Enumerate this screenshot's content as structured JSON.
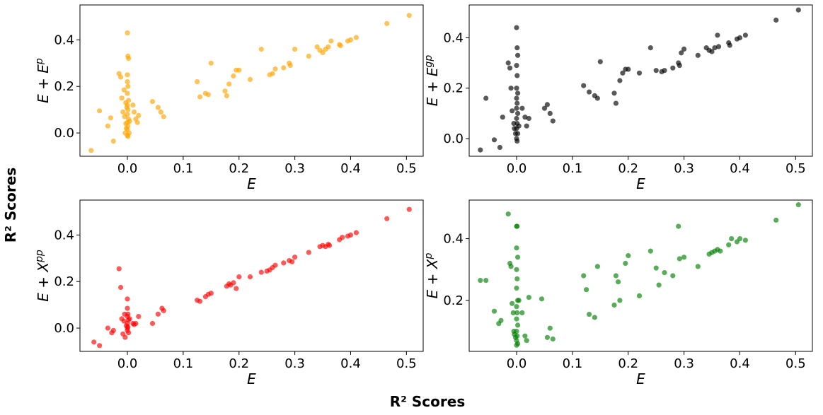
{
  "figure": {
    "shared_xlabel": "R² Scores",
    "shared_ylabel": "R² Scores"
  },
  "chart_data": [
    {
      "type": "scatter",
      "name": "panel-e-plus-ep",
      "color": "#ffa500",
      "xlabel": "E",
      "ylabel_base": "E + E",
      "ylabel_sup": "p",
      "xlim": [
        -0.085,
        0.53
      ],
      "ylim": [
        -0.1,
        0.55
      ],
      "xticks": [
        {
          "v": 0.0,
          "t": "0.0"
        },
        {
          "v": 0.1,
          "t": "0.1"
        },
        {
          "v": 0.2,
          "t": "0.2"
        },
        {
          "v": 0.3,
          "t": "0.3"
        },
        {
          "v": 0.4,
          "t": "0.4"
        },
        {
          "v": 0.5,
          "t": "0.5"
        }
      ],
      "yticks": [
        {
          "v": 0.0,
          "t": "0.0"
        },
        {
          "v": 0.2,
          "t": "0.2"
        },
        {
          "v": 0.4,
          "t": "0.4"
        }
      ],
      "points": [
        [
          -0.065,
          -0.075
        ],
        [
          -0.05,
          0.095
        ],
        [
          -0.035,
          0.03
        ],
        [
          -0.03,
          0.065
        ],
        [
          -0.025,
          -0.035
        ],
        [
          -0.015,
          0.255
        ],
        [
          -0.012,
          0.24
        ],
        [
          -0.01,
          0.15
        ],
        [
          -0.008,
          0.09
        ],
        [
          -0.006,
          0.185
        ],
        [
          -0.005,
          0.07
        ],
        [
          -0.004,
          0.0
        ],
        [
          -0.003,
          0.04
        ],
        [
          -0.002,
          0.02
        ],
        [
          -0.001,
          0.11
        ],
        [
          0.0,
          0.43
        ],
        [
          0.001,
          0.33
        ],
        [
          0.002,
          0.32
        ],
        [
          0.0,
          0.25
        ],
        [
          0.0,
          0.22
        ],
        [
          0.001,
          0.2
        ],
        [
          0.0,
          0.17
        ],
        [
          0.002,
          0.14
        ],
        [
          0.0,
          0.12
        ],
        [
          0.001,
          0.1
        ],
        [
          0.0,
          0.08
        ],
        [
          0.002,
          0.06
        ],
        [
          0.0,
          0.045
        ],
        [
          0.001,
          0.03
        ],
        [
          0.0,
          0.015
        ],
        [
          0.003,
          0.0
        ],
        [
          0.0,
          -0.01
        ],
        [
          0.001,
          -0.015
        ],
        [
          0.004,
          0.05
        ],
        [
          -0.003,
          0.13
        ],
        [
          0.01,
          0.12
        ],
        [
          0.012,
          0.09
        ],
        [
          0.015,
          0.06
        ],
        [
          0.018,
          0.045
        ],
        [
          0.02,
          0.075
        ],
        [
          0.045,
          0.135
        ],
        [
          0.055,
          0.11
        ],
        [
          0.06,
          0.09
        ],
        [
          0.065,
          0.07
        ],
        [
          0.125,
          0.22
        ],
        [
          0.13,
          0.155
        ],
        [
          0.14,
          0.17
        ],
        [
          0.145,
          0.165
        ],
        [
          0.15,
          0.3
        ],
        [
          0.175,
          0.18
        ],
        [
          0.178,
          0.16
        ],
        [
          0.182,
          0.21
        ],
        [
          0.19,
          0.245
        ],
        [
          0.195,
          0.27
        ],
        [
          0.2,
          0.27
        ],
        [
          0.22,
          0.23
        ],
        [
          0.24,
          0.36
        ],
        [
          0.255,
          0.25
        ],
        [
          0.26,
          0.255
        ],
        [
          0.265,
          0.275
        ],
        [
          0.28,
          0.28
        ],
        [
          0.29,
          0.3
        ],
        [
          0.292,
          0.29
        ],
        [
          0.3,
          0.36
        ],
        [
          0.325,
          0.33
        ],
        [
          0.34,
          0.37
        ],
        [
          0.345,
          0.355
        ],
        [
          0.35,
          0.345
        ],
        [
          0.355,
          0.36
        ],
        [
          0.36,
          0.37
        ],
        [
          0.365,
          0.395
        ],
        [
          0.38,
          0.38
        ],
        [
          0.382,
          0.375
        ],
        [
          0.395,
          0.395
        ],
        [
          0.4,
          0.4
        ],
        [
          0.41,
          0.41
        ],
        [
          0.465,
          0.47
        ],
        [
          0.505,
          0.505
        ]
      ]
    },
    {
      "type": "scatter",
      "name": "panel-e-plus-egp",
      "color": "#000000",
      "xlabel": "E",
      "ylabel_base": "E + E",
      "ylabel_sup": "gp",
      "xlim": [
        -0.085,
        0.53
      ],
      "ylim": [
        -0.07,
        0.53
      ],
      "xticks": [
        {
          "v": 0.0,
          "t": "0.0"
        },
        {
          "v": 0.1,
          "t": "0.1"
        },
        {
          "v": 0.2,
          "t": "0.2"
        },
        {
          "v": 0.3,
          "t": "0.3"
        },
        {
          "v": 0.4,
          "t": "0.4"
        },
        {
          "v": 0.5,
          "t": "0.5"
        }
      ],
      "yticks": [
        {
          "v": 0.0,
          "t": "0.0"
        },
        {
          "v": 0.2,
          "t": "0.2"
        },
        {
          "v": 0.4,
          "t": "0.4"
        }
      ],
      "points": [
        [
          -0.065,
          -0.045
        ],
        [
          -0.055,
          0.16
        ],
        [
          -0.04,
          -0.005
        ],
        [
          -0.03,
          -0.035
        ],
        [
          -0.025,
          0.085
        ],
        [
          -0.015,
          0.3
        ],
        [
          -0.012,
          0.28
        ],
        [
          -0.01,
          0.2
        ],
        [
          -0.008,
          0.11
        ],
        [
          -0.005,
          0.06
        ],
        [
          -0.004,
          0.04
        ],
        [
          -0.002,
          0.02
        ],
        [
          0.0,
          0.44
        ],
        [
          0.001,
          0.36
        ],
        [
          0.002,
          0.33
        ],
        [
          0.0,
          0.29
        ],
        [
          0.001,
          0.25
        ],
        [
          0.0,
          0.2
        ],
        [
          0.002,
          0.18
        ],
        [
          0.0,
          0.16
        ],
        [
          0.001,
          0.14
        ],
        [
          0.0,
          0.12
        ],
        [
          0.002,
          0.1
        ],
        [
          0.0,
          0.08
        ],
        [
          0.001,
          0.06
        ],
        [
          0.0,
          0.04
        ],
        [
          0.002,
          0.02
        ],
        [
          0.0,
          0.0
        ],
        [
          0.001,
          -0.01
        ],
        [
          0.004,
          0.05
        ],
        [
          0.01,
          0.12
        ],
        [
          0.015,
          0.085
        ],
        [
          0.018,
          0.05
        ],
        [
          0.022,
          0.08
        ],
        [
          0.05,
          0.12
        ],
        [
          0.055,
          0.135
        ],
        [
          0.06,
          0.1
        ],
        [
          0.065,
          0.07
        ],
        [
          0.12,
          0.21
        ],
        [
          0.13,
          0.185
        ],
        [
          0.14,
          0.17
        ],
        [
          0.145,
          0.16
        ],
        [
          0.15,
          0.305
        ],
        [
          0.175,
          0.18
        ],
        [
          0.178,
          0.14
        ],
        [
          0.185,
          0.23
        ],
        [
          0.19,
          0.26
        ],
        [
          0.195,
          0.275
        ],
        [
          0.2,
          0.275
        ],
        [
          0.22,
          0.26
        ],
        [
          0.24,
          0.36
        ],
        [
          0.25,
          0.27
        ],
        [
          0.26,
          0.265
        ],
        [
          0.265,
          0.27
        ],
        [
          0.28,
          0.28
        ],
        [
          0.29,
          0.3
        ],
        [
          0.292,
          0.29
        ],
        [
          0.295,
          0.34
        ],
        [
          0.3,
          0.355
        ],
        [
          0.325,
          0.33
        ],
        [
          0.34,
          0.36
        ],
        [
          0.345,
          0.35
        ],
        [
          0.35,
          0.345
        ],
        [
          0.355,
          0.36
        ],
        [
          0.36,
          0.41
        ],
        [
          0.362,
          0.365
        ],
        [
          0.38,
          0.38
        ],
        [
          0.382,
          0.37
        ],
        [
          0.395,
          0.395
        ],
        [
          0.4,
          0.4
        ],
        [
          0.41,
          0.41
        ],
        [
          0.465,
          0.47
        ],
        [
          0.505,
          0.51
        ]
      ]
    },
    {
      "type": "scatter",
      "name": "panel-e-plus-xpp",
      "color": "#ff0000",
      "xlabel": "E",
      "ylabel_base": "E + X",
      "ylabel_sup": "pp",
      "xlim": [
        -0.085,
        0.53
      ],
      "ylim": [
        -0.1,
        0.55
      ],
      "xticks": [
        {
          "v": 0.0,
          "t": "0.0"
        },
        {
          "v": 0.1,
          "t": "0.1"
        },
        {
          "v": 0.2,
          "t": "0.2"
        },
        {
          "v": 0.3,
          "t": "0.3"
        },
        {
          "v": 0.4,
          "t": "0.4"
        },
        {
          "v": 0.5,
          "t": "0.5"
        }
      ],
      "yticks": [
        {
          "v": 0.0,
          "t": "0.0"
        },
        {
          "v": 0.2,
          "t": "0.2"
        },
        {
          "v": 0.4,
          "t": "0.4"
        }
      ],
      "points": [
        [
          -0.06,
          -0.06
        ],
        [
          -0.05,
          -0.075
        ],
        [
          -0.035,
          0.0
        ],
        [
          -0.028,
          -0.02
        ],
        [
          -0.025,
          -0.01
        ],
        [
          -0.015,
          0.255
        ],
        [
          -0.012,
          0.175
        ],
        [
          -0.01,
          0.04
        ],
        [
          -0.008,
          -0.025
        ],
        [
          -0.006,
          0.03
        ],
        [
          -0.005,
          0.06
        ],
        [
          -0.004,
          -0.04
        ],
        [
          -0.002,
          0.01
        ],
        [
          0.0,
          0.125
        ],
        [
          0.0,
          0.085
        ],
        [
          0.001,
          0.06
        ],
        [
          0.0,
          0.05
        ],
        [
          0.002,
          0.035
        ],
        [
          0.0,
          0.02
        ],
        [
          0.001,
          0.005
        ],
        [
          0.0,
          -0.01
        ],
        [
          0.002,
          -0.02
        ],
        [
          0.0,
          0.0
        ],
        [
          0.004,
          0.04
        ],
        [
          0.01,
          0.02
        ],
        [
          0.012,
          0.015
        ],
        [
          0.015,
          0.02
        ],
        [
          0.02,
          0.05
        ],
        [
          0.045,
          0.02
        ],
        [
          0.055,
          0.06
        ],
        [
          0.062,
          0.085
        ],
        [
          0.065,
          0.075
        ],
        [
          0.125,
          0.12
        ],
        [
          0.13,
          0.115
        ],
        [
          0.14,
          0.135
        ],
        [
          0.145,
          0.145
        ],
        [
          0.15,
          0.15
        ],
        [
          0.178,
          0.18
        ],
        [
          0.182,
          0.19
        ],
        [
          0.185,
          0.185
        ],
        [
          0.19,
          0.195
        ],
        [
          0.195,
          0.17
        ],
        [
          0.2,
          0.22
        ],
        [
          0.22,
          0.22
        ],
        [
          0.24,
          0.24
        ],
        [
          0.25,
          0.245
        ],
        [
          0.255,
          0.25
        ],
        [
          0.26,
          0.26
        ],
        [
          0.265,
          0.27
        ],
        [
          0.28,
          0.28
        ],
        [
          0.29,
          0.29
        ],
        [
          0.295,
          0.285
        ],
        [
          0.3,
          0.305
        ],
        [
          0.325,
          0.325
        ],
        [
          0.345,
          0.35
        ],
        [
          0.35,
          0.355
        ],
        [
          0.355,
          0.35
        ],
        [
          0.36,
          0.36
        ],
        [
          0.362,
          0.355
        ],
        [
          0.38,
          0.38
        ],
        [
          0.385,
          0.39
        ],
        [
          0.395,
          0.395
        ],
        [
          0.4,
          0.4
        ],
        [
          0.41,
          0.41
        ],
        [
          0.465,
          0.47
        ],
        [
          0.505,
          0.51
        ]
      ]
    },
    {
      "type": "scatter",
      "name": "panel-e-plus-xp",
      "color": "#008000",
      "xlabel": "E",
      "ylabel_base": "E + X",
      "ylabel_sup": "p",
      "xlim": [
        -0.085,
        0.53
      ],
      "ylim": [
        0.035,
        0.525
      ],
      "xticks": [
        {
          "v": 0.0,
          "t": "0.0"
        },
        {
          "v": 0.1,
          "t": "0.1"
        },
        {
          "v": 0.2,
          "t": "0.2"
        },
        {
          "v": 0.3,
          "t": "0.3"
        },
        {
          "v": 0.4,
          "t": "0.4"
        },
        {
          "v": 0.5,
          "t": "0.5"
        }
      ],
      "yticks": [
        {
          "v": 0.2,
          "t": "0.2"
        },
        {
          "v": 0.4,
          "t": "0.4"
        }
      ],
      "points": [
        [
          -0.065,
          0.265
        ],
        [
          -0.055,
          0.265
        ],
        [
          -0.04,
          0.165
        ],
        [
          -0.032,
          0.125
        ],
        [
          -0.028,
          0.135
        ],
        [
          -0.015,
          0.48
        ],
        [
          -0.012,
          0.32
        ],
        [
          -0.01,
          0.31
        ],
        [
          -0.008,
          0.19
        ],
        [
          -0.006,
          0.16
        ],
        [
          -0.005,
          0.1
        ],
        [
          -0.004,
          0.09
        ],
        [
          -0.002,
          0.08
        ],
        [
          0.0,
          0.44
        ],
        [
          0.001,
          0.44
        ],
        [
          0.0,
          0.37
        ],
        [
          0.002,
          0.34
        ],
        [
          0.0,
          0.3
        ],
        [
          0.001,
          0.27
        ],
        [
          0.0,
          0.24
        ],
        [
          0.002,
          0.2
        ],
        [
          0.0,
          0.18
        ],
        [
          0.001,
          0.16
        ],
        [
          0.0,
          0.14
        ],
        [
          0.002,
          0.12
        ],
        [
          0.0,
          0.1
        ],
        [
          0.001,
          0.085
        ],
        [
          0.0,
          0.07
        ],
        [
          0.002,
          0.06
        ],
        [
          0.0,
          0.055
        ],
        [
          0.004,
          0.2
        ],
        [
          0.01,
          0.16
        ],
        [
          0.015,
          0.085
        ],
        [
          0.018,
          0.07
        ],
        [
          0.022,
          0.21
        ],
        [
          0.045,
          0.205
        ],
        [
          0.055,
          0.08
        ],
        [
          0.06,
          0.11
        ],
        [
          0.065,
          0.075
        ],
        [
          0.12,
          0.28
        ],
        [
          0.125,
          0.235
        ],
        [
          0.13,
          0.155
        ],
        [
          0.14,
          0.145
        ],
        [
          0.145,
          0.31
        ],
        [
          0.175,
          0.185
        ],
        [
          0.178,
          0.28
        ],
        [
          0.182,
          0.26
        ],
        [
          0.185,
          0.2
        ],
        [
          0.195,
          0.32
        ],
        [
          0.2,
          0.345
        ],
        [
          0.22,
          0.215
        ],
        [
          0.24,
          0.36
        ],
        [
          0.25,
          0.305
        ],
        [
          0.255,
          0.25
        ],
        [
          0.265,
          0.29
        ],
        [
          0.28,
          0.28
        ],
        [
          0.29,
          0.44
        ],
        [
          0.292,
          0.335
        ],
        [
          0.3,
          0.34
        ],
        [
          0.325,
          0.31
        ],
        [
          0.345,
          0.35
        ],
        [
          0.35,
          0.355
        ],
        [
          0.355,
          0.36
        ],
        [
          0.36,
          0.365
        ],
        [
          0.365,
          0.36
        ],
        [
          0.38,
          0.38
        ],
        [
          0.385,
          0.4
        ],
        [
          0.395,
          0.39
        ],
        [
          0.4,
          0.4
        ],
        [
          0.41,
          0.395
        ],
        [
          0.465,
          0.46
        ],
        [
          0.505,
          0.51
        ]
      ]
    }
  ]
}
